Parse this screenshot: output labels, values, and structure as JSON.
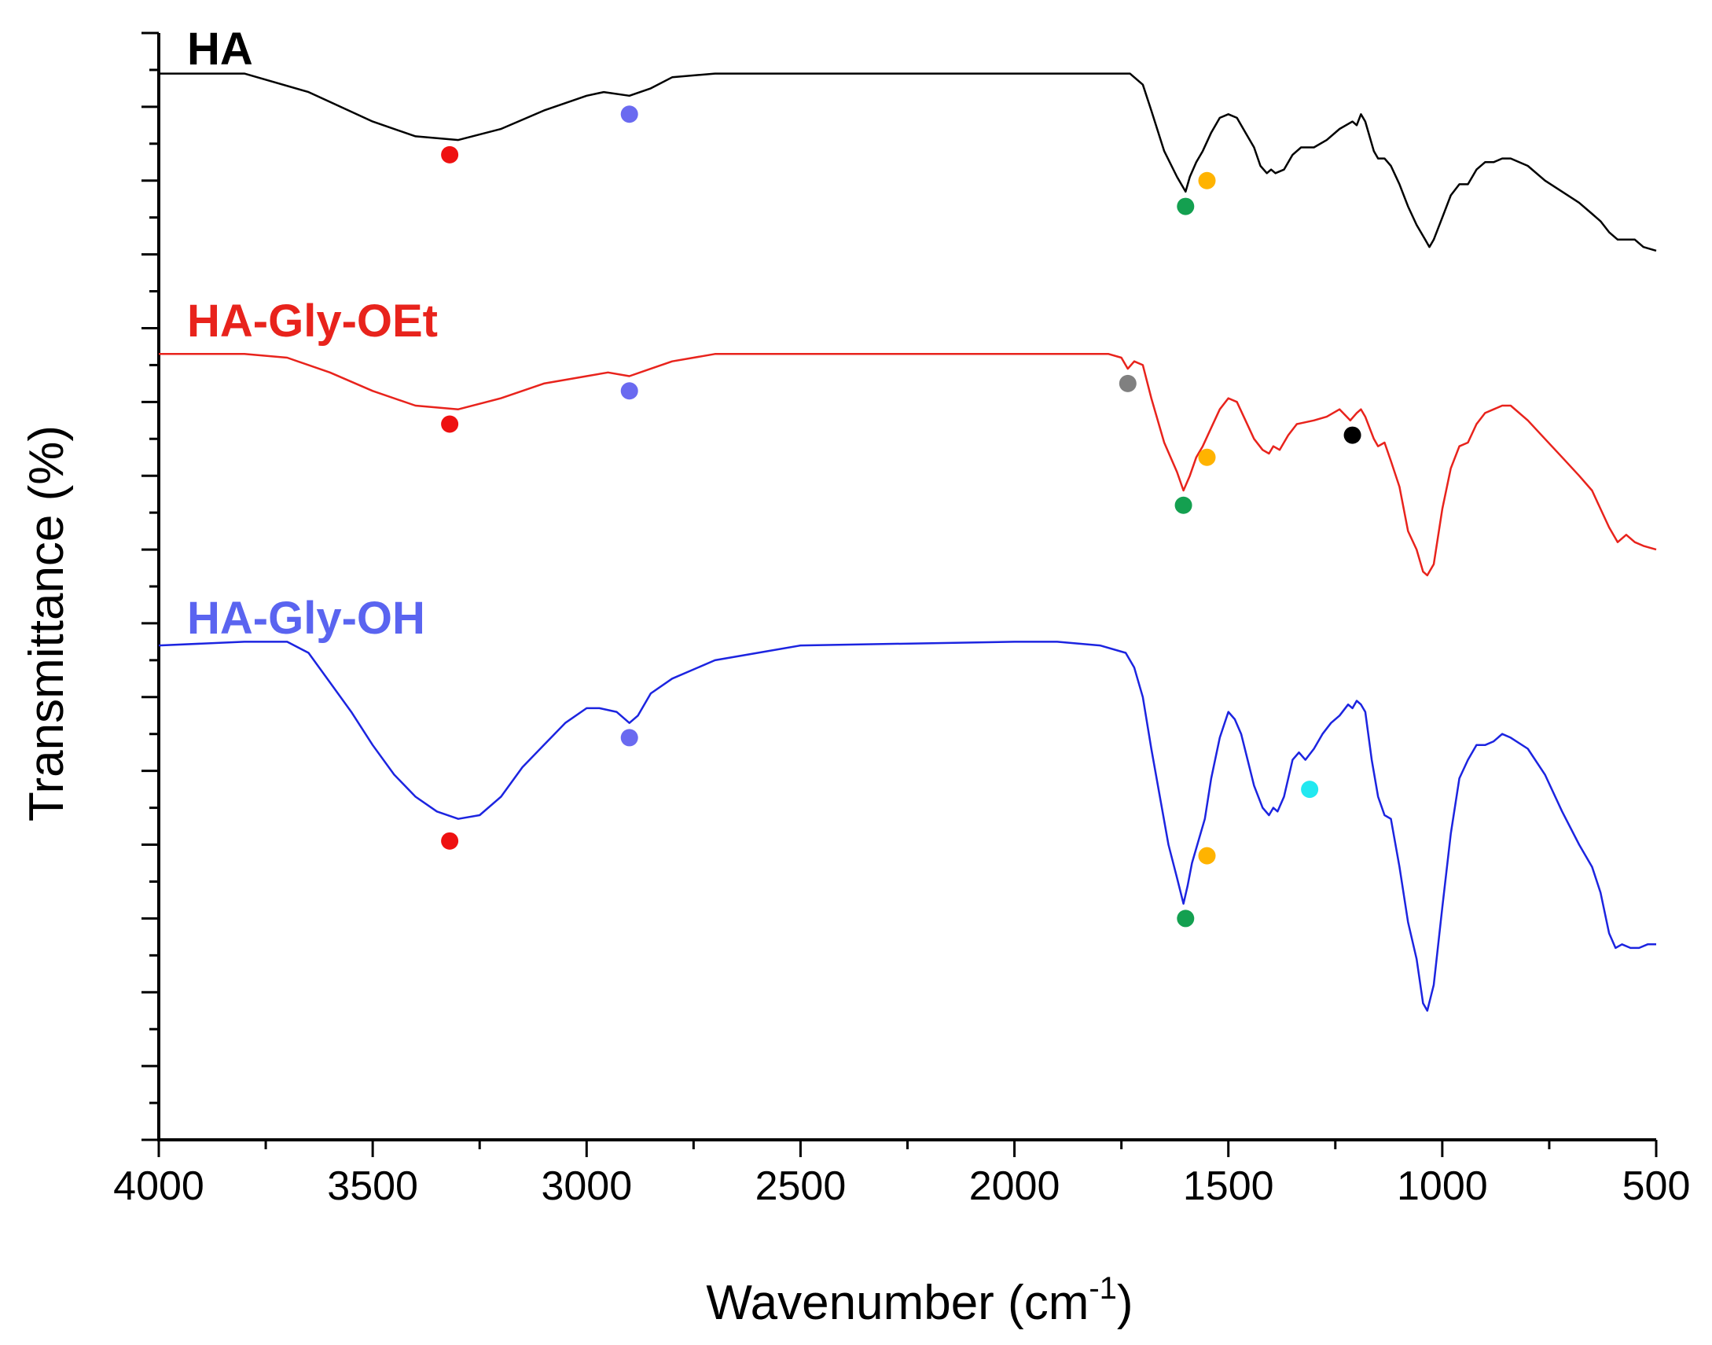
{
  "chart_data": {
    "type": "line",
    "title": "",
    "xlabel": "Wavenumber (cm",
    "xlabel_sup": "-1",
    "xlabel_close": ")",
    "ylabel": "Transmittance (%)",
    "xlim": [
      4000,
      500
    ],
    "x_reversed": true,
    "ylim": [
      0,
      30
    ],
    "x_ticks": [
      4000,
      3500,
      3000,
      2500,
      2000,
      1500,
      1000,
      500
    ],
    "x_tick_labels": [
      "4000",
      "3500",
      "3000",
      "2500",
      "2000",
      "1500",
      "1000",
      "500"
    ],
    "y_tick_labels_shown": false,
    "grid": false,
    "colors": {
      "HA": "#000000",
      "HA-Gly-OEt": "#e8231c",
      "HA-Gly-OH": "#1c24e0",
      "label_HA-Gly-OH": "#5a64f0",
      "marker_red": "#ee1111",
      "marker_blue": "#6a6af0",
      "marker_green": "#14a050",
      "marker_orange": "#ffb300",
      "marker_gray": "#808080",
      "marker_black": "#000000",
      "marker_cyan": "#22e8f0"
    },
    "series": [
      {
        "name": "HA",
        "label": "HA",
        "color": "#000000",
        "label_color": "#000000",
        "points": [
          [
            4000,
            28.9
          ],
          [
            3800,
            28.9
          ],
          [
            3650,
            28.4
          ],
          [
            3500,
            27.6
          ],
          [
            3400,
            27.2
          ],
          [
            3300,
            27.1
          ],
          [
            3200,
            27.4
          ],
          [
            3100,
            27.9
          ],
          [
            3000,
            28.3
          ],
          [
            2960,
            28.4
          ],
          [
            2900,
            28.3
          ],
          [
            2850,
            28.5
          ],
          [
            2800,
            28.8
          ],
          [
            2700,
            28.9
          ],
          [
            2500,
            28.9
          ],
          [
            2000,
            28.9
          ],
          [
            1730,
            28.9
          ],
          [
            1700,
            28.6
          ],
          [
            1680,
            27.9
          ],
          [
            1650,
            26.8
          ],
          [
            1620,
            26.1
          ],
          [
            1600,
            25.7
          ],
          [
            1590,
            26.1
          ],
          [
            1575,
            26.5
          ],
          [
            1560,
            26.8
          ],
          [
            1540,
            27.3
          ],
          [
            1520,
            27.7
          ],
          [
            1500,
            27.8
          ],
          [
            1480,
            27.7
          ],
          [
            1460,
            27.3
          ],
          [
            1440,
            26.9
          ],
          [
            1425,
            26.4
          ],
          [
            1410,
            26.2
          ],
          [
            1400,
            26.3
          ],
          [
            1390,
            26.2
          ],
          [
            1370,
            26.3
          ],
          [
            1350,
            26.7
          ],
          [
            1330,
            26.9
          ],
          [
            1300,
            26.9
          ],
          [
            1270,
            27.1
          ],
          [
            1240,
            27.4
          ],
          [
            1210,
            27.6
          ],
          [
            1200,
            27.5
          ],
          [
            1190,
            27.8
          ],
          [
            1180,
            27.6
          ],
          [
            1160,
            26.8
          ],
          [
            1150,
            26.6
          ],
          [
            1135,
            26.6
          ],
          [
            1120,
            26.4
          ],
          [
            1100,
            25.9
          ],
          [
            1080,
            25.3
          ],
          [
            1060,
            24.8
          ],
          [
            1040,
            24.4
          ],
          [
            1030,
            24.2
          ],
          [
            1020,
            24.4
          ],
          [
            1000,
            25.0
          ],
          [
            980,
            25.6
          ],
          [
            960,
            25.9
          ],
          [
            940,
            25.9
          ],
          [
            920,
            26.3
          ],
          [
            900,
            26.5
          ],
          [
            880,
            26.5
          ],
          [
            860,
            26.6
          ],
          [
            840,
            26.6
          ],
          [
            800,
            26.4
          ],
          [
            760,
            26.0
          ],
          [
            720,
            25.7
          ],
          [
            680,
            25.4
          ],
          [
            650,
            25.1
          ],
          [
            630,
            24.9
          ],
          [
            610,
            24.6
          ],
          [
            590,
            24.4
          ],
          [
            570,
            24.4
          ],
          [
            550,
            24.4
          ],
          [
            530,
            24.2
          ],
          [
            500,
            24.1
          ]
        ]
      },
      {
        "name": "HA-Gly-OEt",
        "label": "HA-Gly-OEt",
        "color": "#e8231c",
        "label_color": "#e8231c",
        "points": [
          [
            4000,
            21.3
          ],
          [
            3800,
            21.3
          ],
          [
            3700,
            21.2
          ],
          [
            3600,
            20.8
          ],
          [
            3500,
            20.3
          ],
          [
            3400,
            19.9
          ],
          [
            3300,
            19.8
          ],
          [
            3200,
            20.1
          ],
          [
            3100,
            20.5
          ],
          [
            3000,
            20.7
          ],
          [
            2950,
            20.8
          ],
          [
            2900,
            20.7
          ],
          [
            2850,
            20.9
          ],
          [
            2800,
            21.1
          ],
          [
            2700,
            21.3
          ],
          [
            2500,
            21.3
          ],
          [
            2000,
            21.3
          ],
          [
            1780,
            21.3
          ],
          [
            1750,
            21.2
          ],
          [
            1735,
            20.9
          ],
          [
            1720,
            21.1
          ],
          [
            1700,
            21.0
          ],
          [
            1680,
            20.1
          ],
          [
            1650,
            18.9
          ],
          [
            1620,
            18.1
          ],
          [
            1605,
            17.6
          ],
          [
            1590,
            18.0
          ],
          [
            1575,
            18.5
          ],
          [
            1560,
            18.8
          ],
          [
            1540,
            19.3
          ],
          [
            1520,
            19.8
          ],
          [
            1500,
            20.1
          ],
          [
            1480,
            20.0
          ],
          [
            1460,
            19.5
          ],
          [
            1440,
            19.0
          ],
          [
            1420,
            18.7
          ],
          [
            1405,
            18.6
          ],
          [
            1395,
            18.8
          ],
          [
            1380,
            18.7
          ],
          [
            1360,
            19.1
          ],
          [
            1340,
            19.4
          ],
          [
            1300,
            19.5
          ],
          [
            1270,
            19.6
          ],
          [
            1240,
            19.8
          ],
          [
            1215,
            19.5
          ],
          [
            1200,
            19.7
          ],
          [
            1190,
            19.8
          ],
          [
            1180,
            19.6
          ],
          [
            1160,
            19.0
          ],
          [
            1150,
            18.8
          ],
          [
            1135,
            18.9
          ],
          [
            1120,
            18.4
          ],
          [
            1100,
            17.7
          ],
          [
            1080,
            16.5
          ],
          [
            1060,
            16.0
          ],
          [
            1045,
            15.4
          ],
          [
            1035,
            15.3
          ],
          [
            1020,
            15.6
          ],
          [
            1000,
            17.1
          ],
          [
            980,
            18.2
          ],
          [
            960,
            18.8
          ],
          [
            940,
            18.9
          ],
          [
            920,
            19.4
          ],
          [
            900,
            19.7
          ],
          [
            880,
            19.8
          ],
          [
            860,
            19.9
          ],
          [
            840,
            19.9
          ],
          [
            800,
            19.5
          ],
          [
            760,
            19.0
          ],
          [
            720,
            18.5
          ],
          [
            680,
            18.0
          ],
          [
            650,
            17.6
          ],
          [
            630,
            17.1
          ],
          [
            610,
            16.6
          ],
          [
            590,
            16.2
          ],
          [
            570,
            16.4
          ],
          [
            550,
            16.2
          ],
          [
            530,
            16.1
          ],
          [
            500,
            16.0
          ]
        ]
      },
      {
        "name": "HA-Gly-OH",
        "label": "HA-Gly-OH",
        "color": "#1c24e0",
        "label_color": "#5a64f0",
        "points": [
          [
            4000,
            13.4
          ],
          [
            3800,
            13.5
          ],
          [
            3700,
            13.5
          ],
          [
            3650,
            13.2
          ],
          [
            3600,
            12.4
          ],
          [
            3550,
            11.6
          ],
          [
            3500,
            10.7
          ],
          [
            3450,
            9.9
          ],
          [
            3400,
            9.3
          ],
          [
            3350,
            8.9
          ],
          [
            3300,
            8.7
          ],
          [
            3250,
            8.8
          ],
          [
            3200,
            9.3
          ],
          [
            3150,
            10.1
          ],
          [
            3100,
            10.7
          ],
          [
            3050,
            11.3
          ],
          [
            3000,
            11.7
          ],
          [
            2970,
            11.7
          ],
          [
            2930,
            11.6
          ],
          [
            2900,
            11.3
          ],
          [
            2880,
            11.5
          ],
          [
            2850,
            12.1
          ],
          [
            2800,
            12.5
          ],
          [
            2700,
            13.0
          ],
          [
            2600,
            13.2
          ],
          [
            2500,
            13.4
          ],
          [
            2000,
            13.5
          ],
          [
            1900,
            13.5
          ],
          [
            1800,
            13.4
          ],
          [
            1740,
            13.2
          ],
          [
            1720,
            12.8
          ],
          [
            1700,
            12.0
          ],
          [
            1680,
            10.6
          ],
          [
            1660,
            9.3
          ],
          [
            1640,
            8.0
          ],
          [
            1620,
            7.1
          ],
          [
            1605,
            6.4
          ],
          [
            1595,
            6.9
          ],
          [
            1585,
            7.5
          ],
          [
            1570,
            8.1
          ],
          [
            1555,
            8.7
          ],
          [
            1540,
            9.8
          ],
          [
            1520,
            10.9
          ],
          [
            1500,
            11.6
          ],
          [
            1485,
            11.4
          ],
          [
            1470,
            11.0
          ],
          [
            1455,
            10.3
          ],
          [
            1440,
            9.6
          ],
          [
            1420,
            9.0
          ],
          [
            1405,
            8.8
          ],
          [
            1395,
            9.0
          ],
          [
            1385,
            8.9
          ],
          [
            1370,
            9.3
          ],
          [
            1350,
            10.3
          ],
          [
            1335,
            10.5
          ],
          [
            1320,
            10.3
          ],
          [
            1300,
            10.6
          ],
          [
            1280,
            11.0
          ],
          [
            1260,
            11.3
          ],
          [
            1240,
            11.5
          ],
          [
            1220,
            11.8
          ],
          [
            1210,
            11.7
          ],
          [
            1200,
            11.9
          ],
          [
            1190,
            11.8
          ],
          [
            1180,
            11.6
          ],
          [
            1165,
            10.3
          ],
          [
            1150,
            9.3
          ],
          [
            1135,
            8.8
          ],
          [
            1120,
            8.7
          ],
          [
            1100,
            7.4
          ],
          [
            1080,
            5.9
          ],
          [
            1060,
            4.9
          ],
          [
            1045,
            3.7
          ],
          [
            1035,
            3.5
          ],
          [
            1020,
            4.2
          ],
          [
            1000,
            6.3
          ],
          [
            980,
            8.3
          ],
          [
            960,
            9.8
          ],
          [
            940,
            10.3
          ],
          [
            920,
            10.7
          ],
          [
            900,
            10.7
          ],
          [
            880,
            10.8
          ],
          [
            860,
            11.0
          ],
          [
            840,
            10.9
          ],
          [
            800,
            10.6
          ],
          [
            760,
            9.9
          ],
          [
            720,
            8.9
          ],
          [
            680,
            8.0
          ],
          [
            650,
            7.4
          ],
          [
            630,
            6.7
          ],
          [
            610,
            5.6
          ],
          [
            595,
            5.2
          ],
          [
            580,
            5.3
          ],
          [
            560,
            5.2
          ],
          [
            540,
            5.2
          ],
          [
            520,
            5.3
          ],
          [
            500,
            5.3
          ]
        ]
      }
    ],
    "markers": [
      {
        "series": "HA",
        "x": 3320,
        "y": 26.7,
        "color": "#ee1111"
      },
      {
        "series": "HA",
        "x": 2900,
        "y": 27.8,
        "color": "#6a6af0"
      },
      {
        "series": "HA",
        "x": 1600,
        "y": 25.3,
        "color": "#14a050"
      },
      {
        "series": "HA",
        "x": 1550,
        "y": 26.0,
        "color": "#ffb300"
      },
      {
        "series": "HA-Gly-OEt",
        "x": 3320,
        "y": 19.4,
        "color": "#ee1111"
      },
      {
        "series": "HA-Gly-OEt",
        "x": 2900,
        "y": 20.3,
        "color": "#6a6af0"
      },
      {
        "series": "HA-Gly-OEt",
        "x": 1735,
        "y": 20.5,
        "color": "#808080"
      },
      {
        "series": "HA-Gly-OEt",
        "x": 1605,
        "y": 17.2,
        "color": "#14a050"
      },
      {
        "series": "HA-Gly-OEt",
        "x": 1550,
        "y": 18.5,
        "color": "#ffb300"
      },
      {
        "series": "HA-Gly-OEt",
        "x": 1210,
        "y": 19.1,
        "color": "#000000"
      },
      {
        "series": "HA-Gly-OH",
        "x": 3320,
        "y": 8.1,
        "color": "#ee1111"
      },
      {
        "series": "HA-Gly-OH",
        "x": 2900,
        "y": 10.9,
        "color": "#6a6af0"
      },
      {
        "series": "HA-Gly-OH",
        "x": 1600,
        "y": 6.0,
        "color": "#14a050"
      },
      {
        "series": "HA-Gly-OH",
        "x": 1550,
        "y": 7.7,
        "color": "#ffb300"
      },
      {
        "series": "HA-Gly-OH",
        "x": 1310,
        "y": 9.5,
        "color": "#22e8f0"
      }
    ]
  }
}
